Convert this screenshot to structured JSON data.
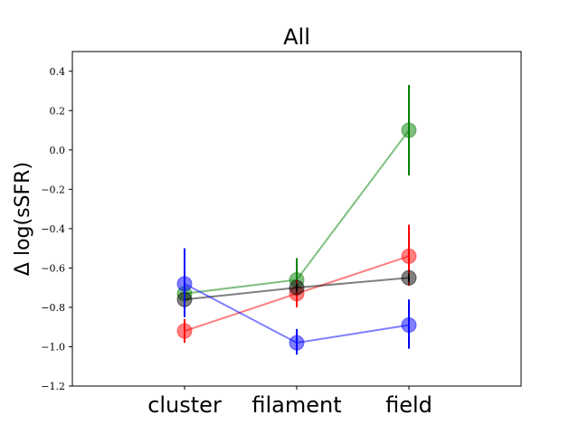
{
  "chart_data": {
    "type": "line",
    "title": "All",
    "xlabel": "",
    "ylabel": "Δ log(sSFR)",
    "categories": [
      "cluster",
      "filament",
      "field"
    ],
    "ylim": [
      -1.2,
      0.5
    ],
    "yticks": [
      "0.4",
      "0.2",
      "0.0",
      "−0.2",
      "−0.4",
      "−0.6",
      "−0.8",
      "−1.0",
      "−1.2"
    ],
    "ytick_values": [
      0.4,
      0.2,
      0.0,
      -0.2,
      -0.4,
      -0.6,
      -0.8,
      -1.0,
      -1.2
    ],
    "grid": false,
    "series": [
      {
        "color": "#008000",
        "values": [
          -0.73,
          -0.66,
          0.1
        ],
        "err_low": [
          -0.75,
          -0.77,
          -0.13
        ],
        "err_high": [
          -0.71,
          -0.55,
          0.33
        ]
      },
      {
        "color": "#ff0000",
        "values": [
          -0.92,
          -0.73,
          -0.54
        ],
        "err_low": [
          -0.98,
          -0.8,
          -0.69
        ],
        "err_high": [
          -0.86,
          -0.66,
          -0.38
        ]
      },
      {
        "color": "#000000",
        "values": [
          -0.76,
          -0.7,
          -0.65
        ],
        "err_low": [
          -0.78,
          -0.72,
          -0.67
        ],
        "err_high": [
          -0.74,
          -0.68,
          -0.63
        ]
      },
      {
        "color": "#0000ff",
        "values": [
          -0.68,
          -0.98,
          -0.89
        ],
        "err_low": [
          -0.85,
          -1.04,
          -1.01
        ],
        "err_high": [
          -0.5,
          -0.91,
          -0.76
        ]
      }
    ]
  }
}
